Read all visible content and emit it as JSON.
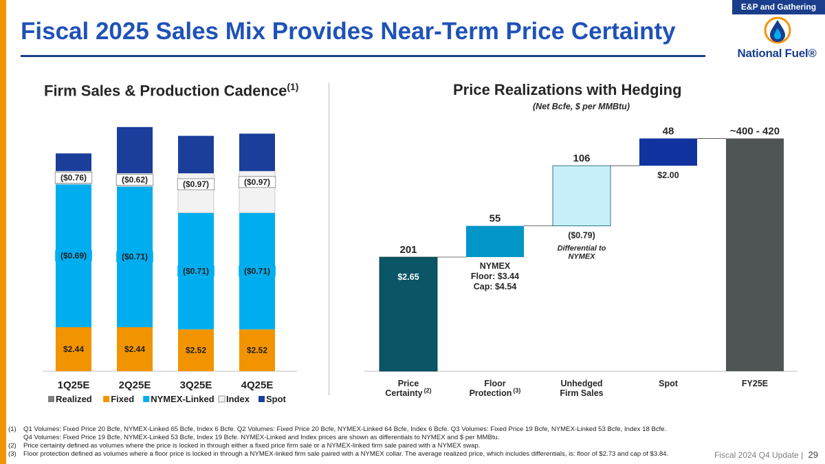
{
  "header": {
    "tag": "E&P and Gathering",
    "title": "Fiscal 2025 Sales Mix Provides Near-Term Price Certainty",
    "logo_text": "National Fuel®"
  },
  "left_panel": {
    "title": "Firm Sales & Production Cadence",
    "title_sup": "(1)"
  },
  "right_panel": {
    "title": "Price Realizations with Hedging",
    "subtitle": "(Net Bcfe, $ per MMBtu)"
  },
  "colors": {
    "fixed": "#f29400",
    "nymex_linked": "#00aeef",
    "index": "#f2f2f2",
    "spot": "#1a3e9a",
    "realized": "#7f7f7f",
    "price_certainty": "#0a5566",
    "floor_protection": "#0096c8",
    "unhedged": "#c8f0fc",
    "spot_wf": "#1033a0",
    "fy25e": "#4f5555"
  },
  "chart_data": [
    {
      "type": "bar",
      "stacked": true,
      "title": "Firm Sales & Production Cadence(1)",
      "categories": [
        "1Q25E",
        "2Q25E",
        "3Q25E",
        "4Q25E"
      ],
      "series": [
        {
          "name": "Realized",
          "values": [
            0,
            0,
            0,
            0
          ]
        },
        {
          "name": "Fixed",
          "values": [
            20,
            20,
            19,
            19
          ],
          "labels": [
            "$2.44",
            "$2.44",
            "$2.52",
            "$2.52"
          ]
        },
        {
          "name": "NYMEX-Linked",
          "values": [
            65,
            64,
            53,
            53
          ],
          "labels": [
            "($0.69)",
            "($0.71)",
            "($0.71)",
            "($0.71)"
          ]
        },
        {
          "name": "Index",
          "values": [
            6,
            6,
            18,
            19
          ],
          "labels": [
            "($0.76)",
            "($0.62)",
            "($0.97)",
            "($0.97)"
          ]
        },
        {
          "name": "Spot",
          "values": [
            8,
            21,
            17,
            17
          ]
        }
      ],
      "legend": [
        "Realized",
        "Fixed",
        "NYMEX-Linked",
        "Index",
        "Spot"
      ],
      "legend_position": "bottom",
      "ylim": [
        0,
        120
      ]
    },
    {
      "type": "bar",
      "subtype": "waterfall",
      "title": "Price Realizations with Hedging",
      "subtitle": "(Net Bcfe, $ per MMBtu)",
      "ylim": [
        0,
        465
      ],
      "bars": [
        {
          "category": "Price Certainty",
          "sup": "(2)",
          "start": 0,
          "value": 201,
          "label": "201",
          "price": "$2.65"
        },
        {
          "category": "Floor Protection",
          "sup": "(3)",
          "start": 201,
          "value": 55,
          "label": "55",
          "note": [
            "NYMEX",
            "Floor: $3.44",
            "Cap: $4.54"
          ]
        },
        {
          "category": "Unhedged Firm Sales",
          "sup": "",
          "start": 256,
          "value": 106,
          "label": "106",
          "price": "($0.79)",
          "note": [
            "Differential to",
            "NYMEX"
          ]
        },
        {
          "category": "Spot",
          "sup": "",
          "start": 362,
          "value": 48,
          "label": "48",
          "price": "$2.00"
        },
        {
          "category": "FY25E",
          "sup": "",
          "start": 0,
          "value": 410,
          "label": "~400 - 420"
        }
      ]
    }
  ],
  "footnotes": [
    {
      "num": "(1)",
      "text": "Q1 Volumes: Fixed Price 20 Bcfe, NYMEX-Linked 65 Bcfe, Index 6 Bcfe. Q2 Volumes: Fixed Price 20 Bcfe, NYMEX-Linked 64 Bcfe, Index 6 Bcfe. Q3 Volumes: Fixed Price 19 Bcfe, NYMEX-Linked 53 Bcfe, Index 18 Bcfe."
    },
    {
      "num": "",
      "text": "Q4 Volumes:  Fixed Price 19 Bcfe, NYMEX-Linked 53 Bcfe, Index 19 Bcfe.  NYMEX-Linked and Index prices are shown as differentials to NYMEX and $ per MMBtu."
    },
    {
      "num": "(2)",
      "text": "Price certainty defined as volumes where the price is locked in through either a fixed price firm sale or a NYMEX-linked firm sale paired with a NYMEX swap."
    },
    {
      "num": "(3)",
      "text": "Floor protection defined as volumes where a floor price is locked in through a NYMEX-linked firm sale paired with a NYMEX collar. The average realized price, which includes differentials, is: floor of $2.73 and cap of $3.84."
    }
  ],
  "footer": {
    "label": "Fiscal 2024 Q4 Update",
    "separator": "|",
    "page": "29"
  }
}
